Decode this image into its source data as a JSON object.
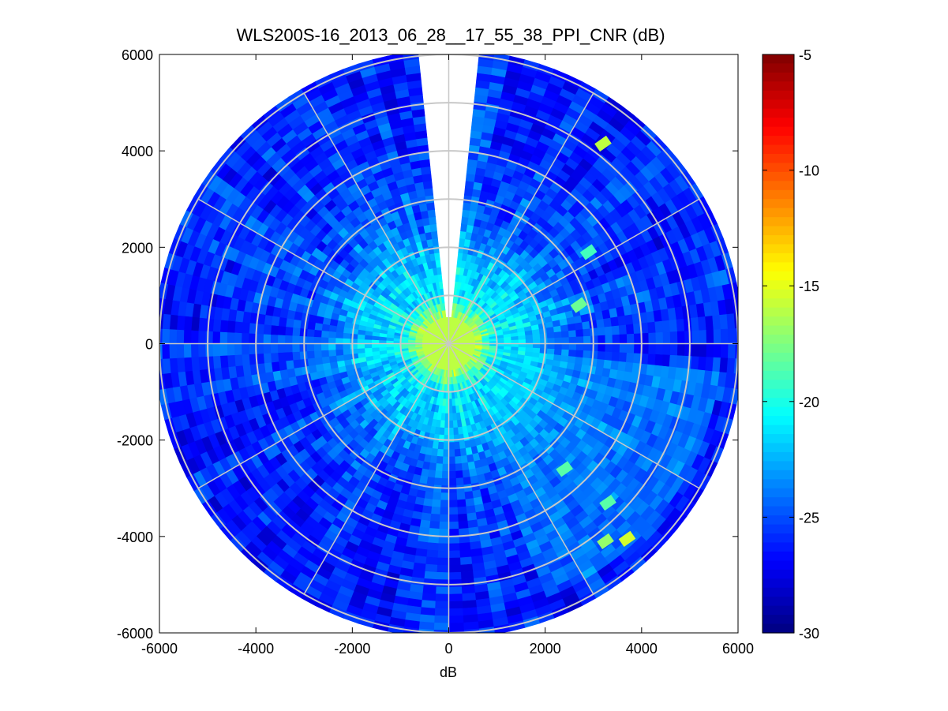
{
  "chart_data": {
    "type": "heatmap",
    "subtype": "polar-ppi",
    "title": "WLS200S-16_2013_06_28__17_55_38_PPI_CNR (dB)",
    "xlabel": "dB",
    "ylabel": "",
    "xlim": [
      -6000,
      6000
    ],
    "ylim": [
      -6000,
      6000
    ],
    "xticks": [
      -6000,
      -4000,
      -2000,
      0,
      2000,
      4000,
      6000
    ],
    "yticks": [
      6000,
      4000,
      2000,
      0,
      -2000,
      -4000,
      -6000
    ],
    "xtick_labels": [
      "-6000",
      "-4000",
      "-2000",
      "0",
      "2000",
      "4000",
      "6000"
    ],
    "ytick_labels": [
      "6000",
      "4000",
      "2000",
      "0",
      "-2000",
      "-4000",
      "-6000"
    ],
    "max_range": 6000,
    "range_rings": [
      1000,
      2000,
      3000,
      4000,
      5000
    ],
    "spoke_angles_deg": [
      0,
      30,
      60,
      90,
      120,
      150,
      180,
      210,
      240,
      270,
      300,
      330
    ],
    "data_gap_bearing_deg": [
      355,
      5
    ],
    "near_field_radius": 550,
    "near_field_cnr": -16,
    "colorbar": {
      "colormap": "jet",
      "clim": [
        -30,
        -5
      ],
      "ticks": [
        -5,
        -10,
        -15,
        -20,
        -25,
        -30
      ],
      "tick_labels": [
        "-5",
        "-10",
        "-15",
        "-20",
        "-25",
        "-30"
      ]
    },
    "cnr_profile": {
      "range_m": [
        550,
        1000,
        1500,
        2000,
        2500,
        3000,
        4000,
        5000,
        6000
      ],
      "mean_cnr_db": [
        -16,
        -21,
        -21.5,
        -22.5,
        -24,
        -25,
        -25.5,
        -26,
        -26
      ]
    },
    "enhanced_sector": {
      "bearing_deg": [
        95,
        160
      ],
      "range_m": [
        1500,
        5600
      ],
      "mean_cnr_db": -21.5
    },
    "hotspots": [
      {
        "x": 3200,
        "y": 4150,
        "cnr_db": -16
      },
      {
        "x": 3700,
        "y": -4050,
        "cnr_db": -15.5
      },
      {
        "x": 3250,
        "y": -4100,
        "cnr_db": -17
      },
      {
        "x": 2700,
        "y": 800,
        "cnr_db": -18
      },
      {
        "x": 2900,
        "y": 1900,
        "cnr_db": -19
      },
      {
        "x": 2400,
        "y": -2600,
        "cnr_db": -18.5
      },
      {
        "x": 3300,
        "y": -3300,
        "cnr_db": -18.5
      }
    ]
  }
}
